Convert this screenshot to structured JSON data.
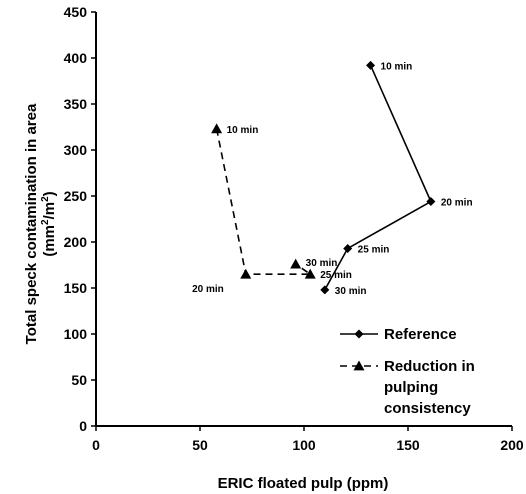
{
  "chart_data": {
    "type": "line",
    "xlabel": "ERIC floated pulp (ppm)",
    "ylabel_line1": "Total speck contamination in area",
    "ylabel_line2_prefix": "(mm",
    "ylabel_sup1": "2",
    "ylabel_line2_mid": "/m",
    "ylabel_sup2": "2",
    "ylabel_line2_suffix": ")",
    "xlim": [
      0,
      200
    ],
    "ylim": [
      0,
      450
    ],
    "xticks": [
      0,
      50,
      100,
      150,
      200
    ],
    "yticks": [
      0,
      50,
      100,
      150,
      200,
      250,
      300,
      350,
      400,
      450
    ],
    "grid": false,
    "legend_position": "bottom-right",
    "series": [
      {
        "name": "Reference",
        "marker": "diamond",
        "line_style": "solid",
        "points": [
          {
            "x": 132,
            "y": 392,
            "label": "10 min"
          },
          {
            "x": 161,
            "y": 244,
            "label": "20 min"
          },
          {
            "x": 121,
            "y": 193,
            "label": "25 min"
          },
          {
            "x": 110,
            "y": 148,
            "label": "30 min"
          }
        ]
      },
      {
        "name": "Reduction in pulping consistency",
        "legend_lines": [
          "Reduction in",
          "pulping",
          "consistency"
        ],
        "marker": "triangle",
        "line_style": "dashed",
        "points": [
          {
            "x": 58,
            "y": 323,
            "label": "10 min"
          },
          {
            "x": 72,
            "y": 165,
            "label": "20 min"
          },
          {
            "x": 103,
            "y": 165,
            "label": "25 min"
          },
          {
            "x": 96,
            "y": 176,
            "label": "30 min"
          }
        ]
      }
    ]
  }
}
